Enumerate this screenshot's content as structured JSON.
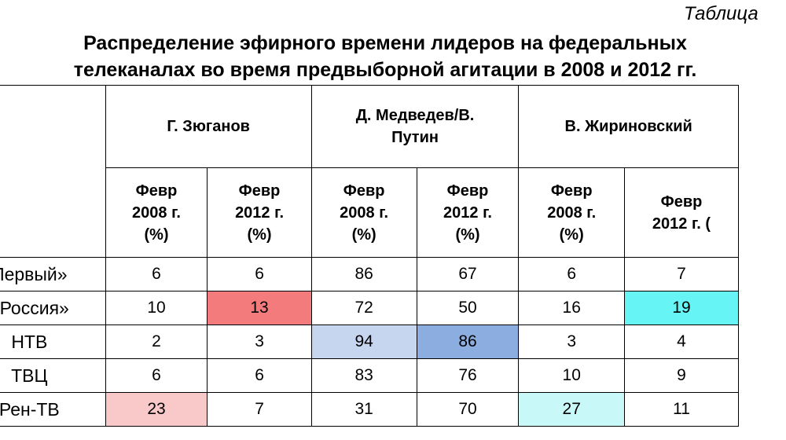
{
  "header": {
    "label": "Таблица",
    "title": [
      "Распределение эфирного времени лидеров на федеральных",
      "телеканалах во время предвыборной агитации в 2008 и 2012 гг."
    ]
  },
  "table": {
    "groups": [
      "Г. Зюганов",
      "Д. Медведев/В.\nПутин",
      "В. Жириновский"
    ],
    "subheaders": [
      "Февр\n2008 г.\n(%)",
      "Февр\n2012 г.\n(%)",
      "Февр\n2008 г.\n(%)",
      "Февр\n2012 г.\n(%)",
      "Февр\n2008 г.\n(%)",
      "Февр\n2012 г. ("
    ],
    "rows": [
      {
        "label": "Первый»",
        "values": [
          6,
          6,
          86,
          67,
          6,
          7
        ],
        "colors": [
          null,
          null,
          null,
          null,
          null,
          null
        ]
      },
      {
        "label": "«Россия»",
        "values": [
          10,
          13,
          72,
          50,
          16,
          19
        ],
        "colors": [
          null,
          "#f47b7b",
          null,
          null,
          null,
          "#66f4f4"
        ]
      },
      {
        "label": "НТВ",
        "values": [
          2,
          3,
          94,
          86,
          3,
          4
        ],
        "colors": [
          null,
          null,
          "#c6d6ef",
          "#8caddf",
          null,
          null
        ]
      },
      {
        "label": "ТВЦ",
        "values": [
          6,
          6,
          83,
          76,
          10,
          9
        ],
        "colors": [
          null,
          null,
          null,
          null,
          null,
          null
        ]
      },
      {
        "label": "Рен-ТВ",
        "values": [
          23,
          7,
          31,
          70,
          27,
          11
        ],
        "colors": [
          "#f9c8c8",
          null,
          null,
          null,
          "#c9f8f8",
          null
        ]
      }
    ]
  }
}
